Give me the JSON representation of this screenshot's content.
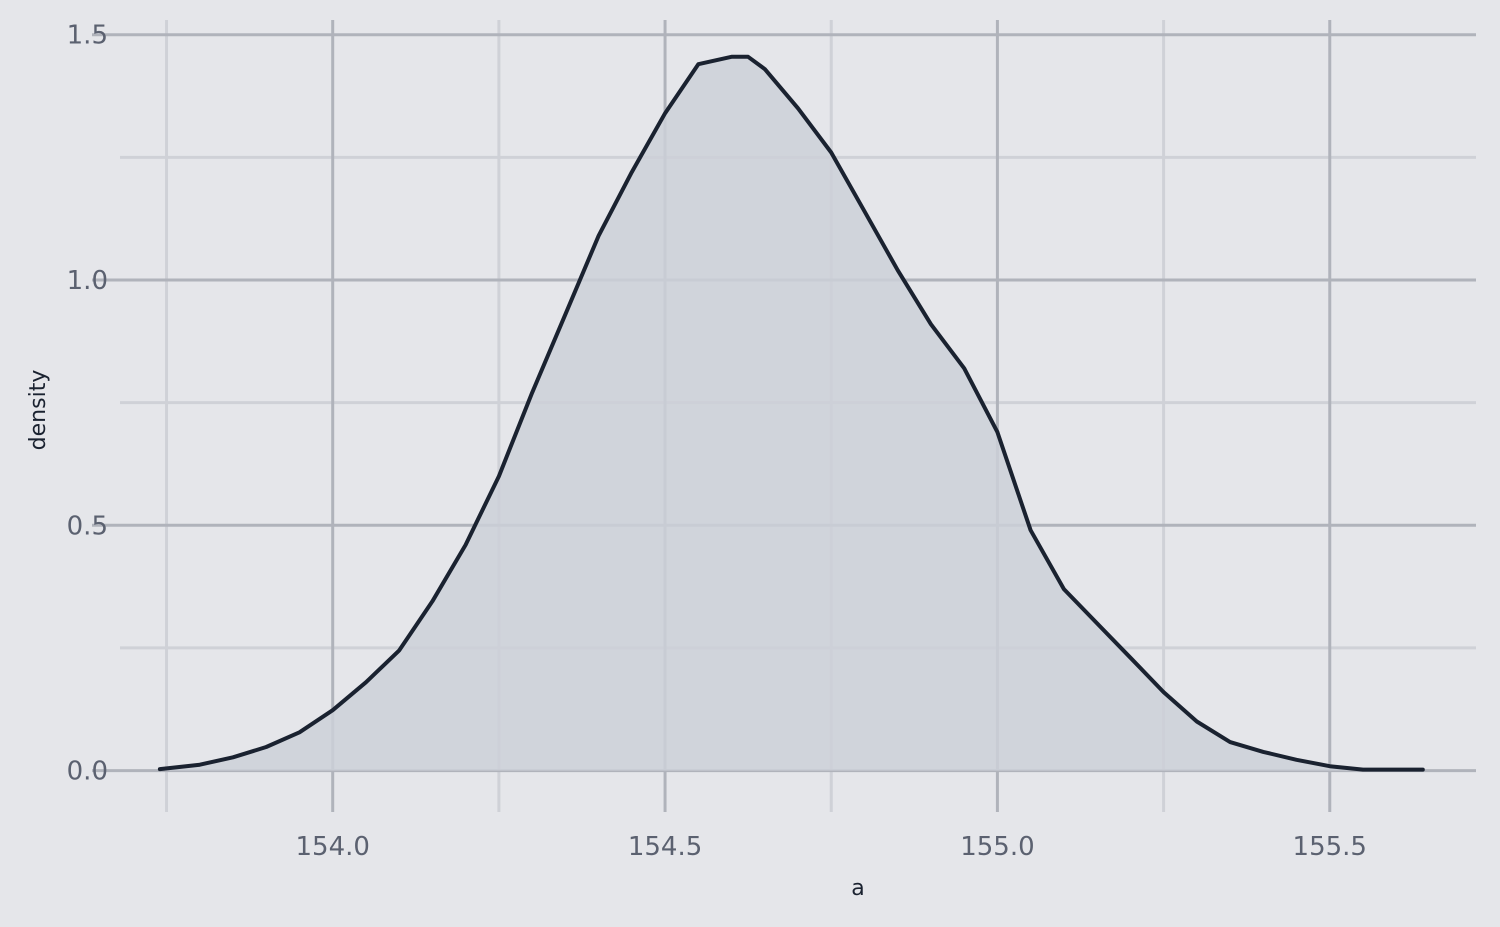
{
  "chart_data": {
    "type": "area",
    "title": "",
    "xlabel": "a",
    "ylabel": "density",
    "xlim": [
      153.68,
      155.72
    ],
    "ylim": [
      -0.06,
      1.53
    ],
    "x_ticks": [
      154.0,
      154.5,
      155.0,
      155.5
    ],
    "x_tick_labels": [
      "154.0",
      "154.5",
      "155.0",
      "155.5"
    ],
    "x_minor_ticks": [
      153.75,
      154.25,
      154.75,
      155.25
    ],
    "y_ticks": [
      0.0,
      0.5,
      1.0,
      1.5
    ],
    "y_tick_labels": [
      "0.0",
      "0.5",
      "1.0",
      "1.5"
    ],
    "y_minor_ticks": [
      0.25,
      0.75,
      1.25
    ],
    "grid": true,
    "legend": "none",
    "colors": {
      "background": "#e5e6ea",
      "major_grid": "#b0b3bb",
      "minor_grid": "#cfd1d7",
      "line": "#1a2230",
      "fill": "#cdd0d8"
    },
    "series": [
      {
        "x": [
          153.74,
          153.8,
          153.85,
          153.9,
          153.95,
          154.0,
          154.05,
          154.1,
          154.15,
          154.2,
          154.25,
          154.3,
          154.35,
          154.4,
          154.45,
          154.5,
          154.55,
          154.6,
          154.625,
          154.65,
          154.7,
          154.75,
          154.8,
          154.85,
          154.9,
          154.95,
          155.0,
          155.05,
          155.1,
          155.15,
          155.2,
          155.25,
          155.3,
          155.35,
          155.4,
          155.45,
          155.5,
          155.55,
          155.6,
          155.64
        ],
        "y": [
          0.003,
          0.012,
          0.027,
          0.048,
          0.078,
          0.123,
          0.18,
          0.245,
          0.345,
          0.46,
          0.6,
          0.77,
          0.93,
          1.09,
          1.22,
          1.34,
          1.44,
          1.455,
          1.455,
          1.43,
          1.35,
          1.26,
          1.14,
          1.02,
          0.91,
          0.82,
          0.69,
          0.49,
          0.37,
          0.3,
          0.23,
          0.16,
          0.1,
          0.058,
          0.038,
          0.022,
          0.009,
          0.002,
          0.002,
          0.002
        ]
      }
    ]
  }
}
